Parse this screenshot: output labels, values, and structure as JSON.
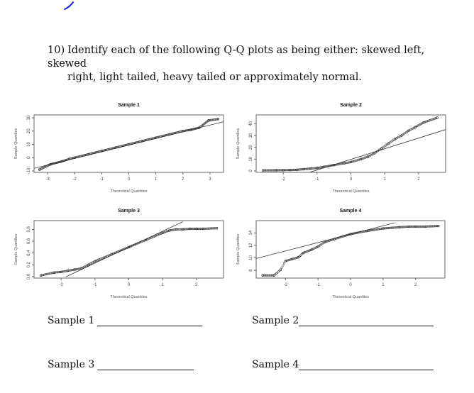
{
  "question": {
    "number": "10)",
    "line1": "Identify each of the following Q-Q plots as being either: skewed left, skewed",
    "line2": "right, light tailed, heavy tailed or approximately normal."
  },
  "answers": [
    {
      "label": "Sample 1",
      "value": ""
    },
    {
      "label": "Sample 2",
      "value": ""
    },
    {
      "label": "Sample 3",
      "value": ""
    },
    {
      "label": "Sample 4",
      "value": ""
    }
  ],
  "chart_data": [
    {
      "type": "scatter",
      "title": "Sample 1",
      "xlabel": "Theoretical Quantiles",
      "ylabel": "Sample Quantiles",
      "xlim": [
        -3.5,
        3.5
      ],
      "ylim": [
        -10,
        30
      ],
      "xticks": [
        "-3",
        "-2",
        "-1",
        "0",
        "1",
        "2",
        "3"
      ],
      "yticks": [
        "-10",
        "0",
        "10",
        "20",
        "30"
      ],
      "reference_line": {
        "x": [
          -3.5,
          3.5
        ],
        "y": [
          -8,
          27
        ]
      },
      "pattern": "approximately normal",
      "points_sample": [
        [
          -3.3,
          -9
        ],
        [
          -2.9,
          -5
        ],
        [
          -2.5,
          -3
        ],
        [
          -2.2,
          -1
        ],
        [
          -2,
          0
        ],
        [
          -1.5,
          2.5
        ],
        [
          -1,
          5
        ],
        [
          -0.5,
          7.5
        ],
        [
          0,
          10
        ],
        [
          0.5,
          12.5
        ],
        [
          1,
          15
        ],
        [
          1.5,
          17.5
        ],
        [
          2,
          20
        ],
        [
          2.3,
          21
        ],
        [
          2.6,
          22.5
        ],
        [
          2.95,
          28
        ],
        [
          3.3,
          29
        ]
      ]
    },
    {
      "type": "scatter",
      "title": "Sample 2",
      "xlabel": "Theoretical Quantiles",
      "ylabel": "Sample Quantiles",
      "xlim": [
        -2.8,
        2.8
      ],
      "ylim": [
        0,
        45
      ],
      "xticks": [
        "-2",
        "-1",
        "0",
        "1",
        "2"
      ],
      "yticks": [
        "0",
        "10",
        "20",
        "30",
        "40"
      ],
      "reference_line": {
        "x": [
          -1.2,
          2.8
        ],
        "y": [
          -1,
          35
        ]
      },
      "pattern": "skewed right",
      "points_sample": [
        [
          -2.6,
          0.5
        ],
        [
          -2.2,
          0.6
        ],
        [
          -2,
          0.7
        ],
        [
          -1.8,
          0.8
        ],
        [
          -1.6,
          1
        ],
        [
          -1.4,
          1.5
        ],
        [
          -1.2,
          2
        ],
        [
          -1,
          2.5
        ],
        [
          -0.8,
          3.5
        ],
        [
          -0.5,
          5
        ],
        [
          -0.2,
          6.5
        ],
        [
          0,
          7.5
        ],
        [
          0.3,
          10
        ],
        [
          0.5,
          12
        ],
        [
          0.7,
          15
        ],
        [
          0.9,
          19
        ],
        [
          1.1,
          23
        ],
        [
          1.3,
          27
        ],
        [
          1.5,
          30
        ],
        [
          1.7,
          34
        ],
        [
          1.9,
          37
        ],
        [
          2.15,
          41
        ],
        [
          2.55,
          45
        ]
      ]
    },
    {
      "type": "scatter",
      "title": "Sample 3",
      "xlabel": "Theoretical Quantiles",
      "ylabel": "Sample Quantiles",
      "xlim": [
        -2.8,
        2.8
      ],
      "ylim": [
        0,
        0.9
      ],
      "xticks": [
        "-2",
        "-1",
        "0",
        "1",
        "2"
      ],
      "yticks": [
        "0.0",
        "0.2",
        "0.4",
        "0.6",
        "0.8"
      ],
      "reference_line": {
        "x": [
          -1.85,
          1.6
        ],
        "y": [
          0,
          0.93
        ]
      },
      "pattern": "light tailed",
      "points_sample": [
        [
          -2.6,
          0.02
        ],
        [
          -2.2,
          0.07
        ],
        [
          -2,
          0.08
        ],
        [
          -1.8,
          0.1
        ],
        [
          -1.6,
          0.12
        ],
        [
          -1.4,
          0.14
        ],
        [
          -1.2,
          0.2
        ],
        [
          -1,
          0.26
        ],
        [
          -0.5,
          0.38
        ],
        [
          0,
          0.5
        ],
        [
          0.5,
          0.62
        ],
        [
          1,
          0.74
        ],
        [
          1.2,
          0.78
        ],
        [
          1.4,
          0.8
        ],
        [
          1.6,
          0.8
        ],
        [
          1.8,
          0.81
        ],
        [
          2,
          0.81
        ],
        [
          2.2,
          0.81
        ],
        [
          2.6,
          0.82
        ]
      ]
    },
    {
      "type": "scatter",
      "title": "Sample 4",
      "xlabel": "Theoretical Quantiles",
      "ylabel": "Sample Quantiles",
      "xlim": [
        -2.9,
        2.9
      ],
      "ylim": [
        7,
        15.5
      ],
      "xticks": [
        "-2",
        "-1",
        "0",
        "1",
        "2"
      ],
      "yticks": [
        "8",
        "10",
        "12",
        "14"
      ],
      "reference_line": {
        "x": [
          -2.9,
          1.35
        ],
        "y": [
          9.9,
          15.6
        ]
      },
      "pattern": "skewed left",
      "points_sample": [
        [
          -2.7,
          7.2
        ],
        [
          -2.35,
          7.2
        ],
        [
          -2.15,
          8.1
        ],
        [
          -2,
          9.5
        ],
        [
          -1.8,
          9.8
        ],
        [
          -1.6,
          10.1
        ],
        [
          -1.45,
          10.8
        ],
        [
          -1.2,
          11.3
        ],
        [
          -1,
          11.8
        ],
        [
          -0.8,
          12.5
        ],
        [
          -0.5,
          13
        ],
        [
          0,
          13.8
        ],
        [
          0.5,
          14.3
        ],
        [
          1,
          14.7
        ],
        [
          1.5,
          14.9
        ],
        [
          1.8,
          15
        ],
        [
          2,
          15
        ],
        [
          2.3,
          15
        ],
        [
          2.7,
          15.1
        ]
      ]
    }
  ]
}
